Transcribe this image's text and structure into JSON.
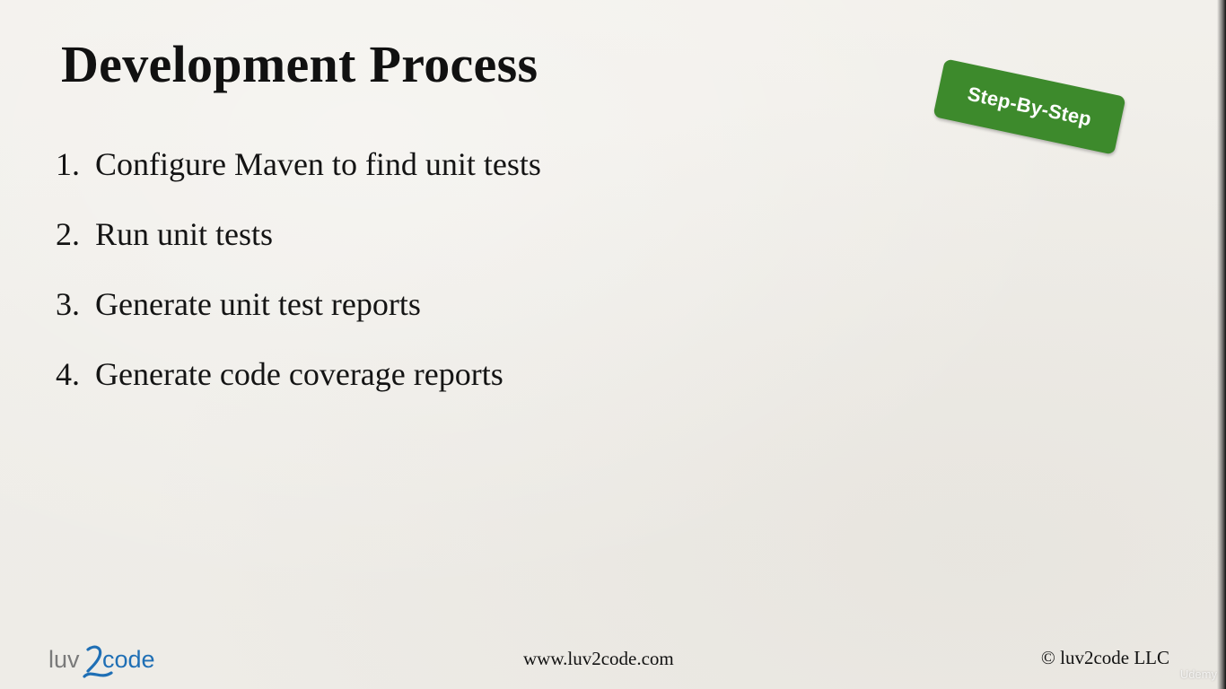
{
  "slide": {
    "title": "Development Process",
    "steps": [
      {
        "number": "1.",
        "text": "Configure Maven to find unit tests"
      },
      {
        "number": "2.",
        "text": "Run unit tests"
      },
      {
        "number": "3.",
        "text": "Generate unit test reports"
      },
      {
        "number": "4.",
        "text": "Generate code coverage reports"
      }
    ],
    "badge": {
      "label": "Step-By-Step",
      "color": "#3d8a2c"
    }
  },
  "footer": {
    "logo": {
      "text": "luv2code",
      "gray_part": "luv",
      "blue_part": "code",
      "color_gray": "#7a7a7a",
      "color_blue": "#1f6fb5"
    },
    "url": "www.luv2code.com",
    "copyright": "© luv2code LLC"
  },
  "watermark": {
    "text": "Udemy"
  }
}
